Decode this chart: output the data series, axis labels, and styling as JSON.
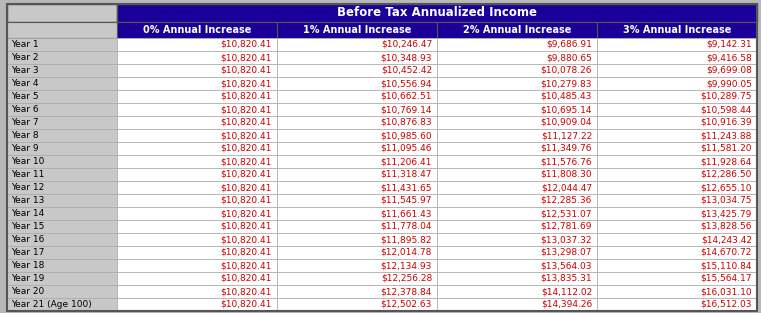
{
  "title": "Before Tax Annualized Income",
  "col_headers": [
    "0% Annual Increase",
    "1% Annual Increase",
    "2% Annual Increase",
    "3% Annual Increase"
  ],
  "row_labels": [
    "Year 1",
    "Year 2",
    "Year 3",
    "Year 4",
    "Year 5",
    "Year 6",
    "Year 7",
    "Year 8",
    "Year 9",
    "Year 10",
    "Year 11",
    "Year 12",
    "Year 13",
    "Year 14",
    "Year 15",
    "Year 16",
    "Year 17",
    "Year 18",
    "Year 19",
    "Year 20",
    "Year 21 (Age 100)"
  ],
  "col0": [
    "$10,820.41",
    "$10,820.41",
    "$10,820.41",
    "$10,820.41",
    "$10,820.41",
    "$10,820.41",
    "$10,820.41",
    "$10,820.41",
    "$10,820.41",
    "$10,820.41",
    "$10,820.41",
    "$10,820.41",
    "$10,820.41",
    "$10,820.41",
    "$10,820.41",
    "$10,820.41",
    "$10,820.41",
    "$10,820.41",
    "$10,820.41",
    "$10,820.41",
    "$10,820.41"
  ],
  "col1": [
    "$10,246.47",
    "$10,348.93",
    "$10,452.42",
    "$10,556.94",
    "$10,662.51",
    "$10,769.14",
    "$10,876.83",
    "$10,985.60",
    "$11,095.46",
    "$11,206.41",
    "$11,318.47",
    "$11,431.65",
    "$11,545.97",
    "$11,661.43",
    "$11,778.04",
    "$11,895.82",
    "$12,014.78",
    "$12,134.93",
    "$12,256.28",
    "$12,378.84",
    "$12,502.63"
  ],
  "col2": [
    "$9,686.91",
    "$9,880.65",
    "$10,078.26",
    "$10,279.83",
    "$10,485.43",
    "$10,695.14",
    "$10,909.04",
    "$11,127.22",
    "$11,349.76",
    "$11,576.76",
    "$11,808.30",
    "$12,044.47",
    "$12,285.36",
    "$12,531.07",
    "$12,781.69",
    "$13,037.32",
    "$13,298.07",
    "$13,564.03",
    "$13,835.31",
    "$14,112.02",
    "$14,394.26"
  ],
  "col3": [
    "$9,142.31",
    "$9,416.58",
    "$9,699.08",
    "$9,990.05",
    "$10,289.75",
    "$10,598.44",
    "$10,916.39",
    "$11,243.88",
    "$11,581.20",
    "$11,928.64",
    "$12,286.50",
    "$12,655.10",
    "$13,034.75",
    "$13,425.79",
    "$13,828.56",
    "$14,243.42",
    "$14,670.72",
    "$15,110.84",
    "$15,564.17",
    "$16,031.10",
    "$16,512.03"
  ],
  "header_bg": "#1a0099",
  "header_text_color": "#ffffff",
  "subheader_bg": "#1a0099",
  "subheader_text_color": "#ffffff",
  "row_label_bg": "#c8c8c8",
  "row_label_text": "#000000",
  "cell_text_color": "#cc0000",
  "cell_bg": "#ffffff",
  "grid_color": "#aaaaaa",
  "outer_border_color": "#555555",
  "fig_bg": "#b8b8b8"
}
